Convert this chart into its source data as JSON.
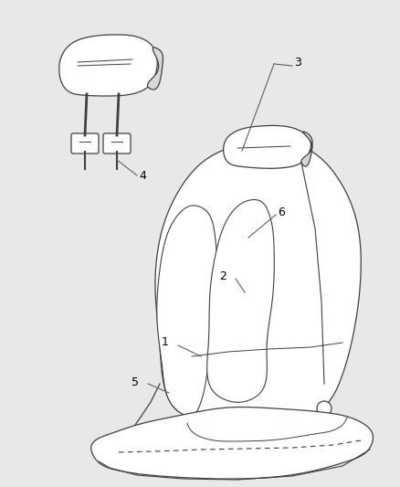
{
  "background_color": "#e8e8e8",
  "line_color": "#404040",
  "annotation_color": "#606060",
  "font_size": 9,
  "lw": 0.9
}
